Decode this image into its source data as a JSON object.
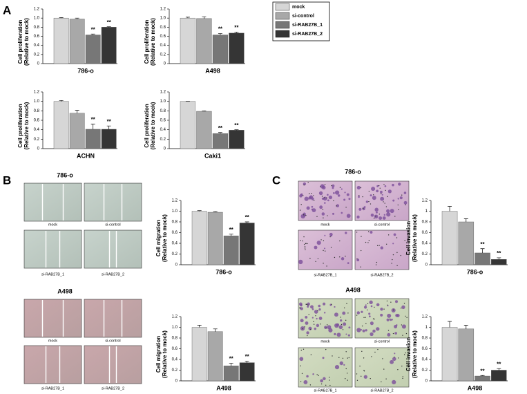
{
  "panel_labels": [
    "A",
    "B",
    "C"
  ],
  "legend": {
    "names": [
      "mock",
      "si-control",
      "si-RAB27B_1",
      "si-RAB27B_2"
    ],
    "colors": [
      "#d6d6d6",
      "#a8a8a8",
      "#777777",
      "#353535"
    ]
  },
  "image_panels": [
    {
      "title": "786-o",
      "captions": [
        "mock",
        "si-control",
        "si-RAB27B_1",
        "si-RAB27B_2"
      ]
    },
    {
      "title": "A498",
      "captions": [
        "mock",
        "si-control",
        "si-RAB27B_1",
        "si-RAB27B_2"
      ]
    },
    {
      "title": "786-o",
      "captions": [
        "mock",
        "si-control",
        "si-RAB27B_1",
        "si-RAB27B_2"
      ]
    },
    {
      "title": "A498",
      "captions": [
        "mock",
        "si-control",
        "si-RAB27B_1",
        "si-RAB27B_2"
      ]
    }
  ],
  "chart_data": [
    {
      "type": "bar",
      "ylabel": [
        "Cell proliferation",
        "(Relative to mock)"
      ],
      "xlabel": "786-o",
      "values": [
        1.0,
        0.98,
        0.63,
        0.8
      ],
      "errors": [
        0.01,
        0.02,
        0.02,
        0.01
      ],
      "significance": [
        null,
        null,
        "**",
        "**"
      ],
      "ylim": [
        0,
        1.2
      ],
      "yticks": [
        0,
        0.2,
        0.4,
        0.6,
        0.8,
        {
          "value": 1,
          "label": "1.0"
        },
        1.2
      ]
    },
    {
      "type": "bar",
      "ylabel": [
        "Cell proliferation",
        "(Relative to mock)"
      ],
      "xlabel": "A498",
      "values": [
        1.0,
        0.99,
        0.63,
        0.67
      ],
      "errors": [
        0.02,
        0.04,
        0.03,
        0.02
      ],
      "significance": [
        null,
        null,
        "**",
        "**"
      ],
      "ylim": [
        0,
        1.2
      ],
      "yticks": [
        0,
        0.2,
        0.4,
        0.6,
        0.8,
        {
          "value": 1,
          "label": "1.0"
        },
        1.2
      ]
    },
    {
      "type": "bar",
      "ylabel": [
        "Cell proliferation",
        "(Relative to mock)"
      ],
      "xlabel": "ACHN",
      "values": [
        1.0,
        0.75,
        0.41,
        0.41
      ],
      "errors": [
        0.02,
        0.06,
        0.11,
        0.07
      ],
      "significance": [
        null,
        null,
        "**",
        "**"
      ],
      "ylim": [
        0,
        1.2
      ],
      "yticks": [
        0,
        0.2,
        0.4,
        0.6,
        0.8,
        {
          "value": 1,
          "label": "1.0"
        },
        1.2
      ]
    },
    {
      "type": "bar",
      "ylabel": [
        "Cell proliferation",
        "(Relative to mock)"
      ],
      "xlabel": "Caki1",
      "values": [
        1.0,
        0.79,
        0.32,
        0.39
      ],
      "errors": [
        0.0,
        0.01,
        0.02,
        0.01
      ],
      "significance": [
        null,
        null,
        "**",
        "**"
      ],
      "ylim": [
        0,
        1.2
      ],
      "yticks": [
        0,
        0.2,
        0.4,
        0.6,
        0.8,
        {
          "value": 1,
          "label": "1.0"
        },
        1.2
      ]
    },
    {
      "type": "bar",
      "ylabel": [
        "Cell migration",
        "(Relative to mock)"
      ],
      "xlabel": "786-o",
      "values": [
        1.0,
        0.98,
        0.54,
        0.78
      ],
      "errors": [
        0.01,
        0.01,
        0.03,
        0.02
      ],
      "significance": [
        null,
        null,
        "**",
        "**"
      ],
      "ylim": [
        0,
        1.2
      ],
      "yticks": [
        0,
        0.2,
        0.4,
        0.6,
        0.8,
        {
          "value": 1,
          "label": "1.0"
        },
        1.2
      ]
    },
    {
      "type": "bar",
      "ylabel": [
        "Cell migration",
        "(Relative to mock)"
      ],
      "xlabel": "A498",
      "values": [
        1.0,
        0.92,
        0.28,
        0.34
      ],
      "errors": [
        0.04,
        0.05,
        0.05,
        0.03
      ],
      "significance": [
        null,
        null,
        "**",
        "**"
      ],
      "ylim": [
        0,
        1.2
      ],
      "yticks": [
        0,
        0.2,
        0.4,
        0.6,
        0.8,
        {
          "value": 1,
          "label": "1.0"
        },
        1.2
      ]
    },
    {
      "type": "bar",
      "ylabel": [
        "Cell invasion",
        "(Relative to mock)"
      ],
      "xlabel": "786-o",
      "values": [
        1.0,
        0.8,
        0.22,
        0.1
      ],
      "errors": [
        0.09,
        0.06,
        0.08,
        0.03
      ],
      "significance": [
        null,
        null,
        "**",
        "**"
      ],
      "ylim": [
        0,
        1.2
      ],
      "yticks": [
        0,
        0.2,
        0.4,
        0.6,
        0.8,
        1,
        1.2
      ]
    },
    {
      "type": "bar",
      "ylabel": [
        "Cell invasion",
        "(Relative to mock)"
      ],
      "xlabel": "A498",
      "values": [
        1.0,
        0.97,
        0.09,
        0.2
      ],
      "errors": [
        0.11,
        0.07,
        0.01,
        0.03
      ],
      "significance": [
        null,
        null,
        "**",
        "**"
      ],
      "ylim": [
        0,
        1.2
      ],
      "yticks": [
        0,
        0.2,
        0.4,
        0.6,
        0.8,
        1,
        1.2
      ]
    }
  ]
}
